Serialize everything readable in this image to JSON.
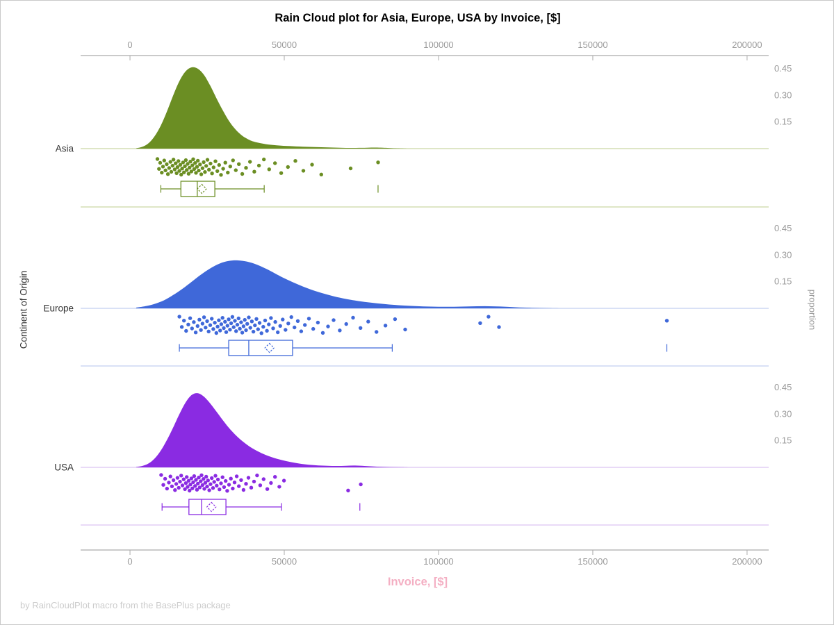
{
  "window": {
    "background": "#FFFFFF",
    "border_color": "#C9C9C9"
  },
  "footer": {
    "text": "by RainCloudPlot macro from the BasePlus package",
    "color": "#CCCCCC"
  },
  "chart_data": {
    "type": "raincloud",
    "title": "Rain Cloud plot for Asia, Europe, USA by Invoice, [$]",
    "xlabel": "Invoice, [$]",
    "xlabel_color": "#F4AFC3",
    "ylabel_left": "Continent of Origin",
    "ylabel_right": "proportion",
    "x_axis": {
      "tick_values": [
        0,
        50000,
        100000,
        150000,
        200000
      ],
      "tick_labels": [
        "0",
        "50000",
        "100000",
        "150000",
        "200000"
      ],
      "range_dollars": [
        -16000,
        207000
      ],
      "color": "#ABABAB",
      "tick_label_color": "#9A9A9A"
    },
    "proportion_ticks": {
      "values": [
        0.45,
        0.3,
        0.15
      ],
      "labels": [
        "0.45",
        "0.30",
        "0.15"
      ],
      "color": "#9A9A9A"
    },
    "groups": [
      {
        "name": "Asia",
        "color": "#6B8E23",
        "light_color": "#C9D6A3",
        "density": {
          "x_thousands": [
            2,
            4,
            6,
            8,
            10,
            12,
            14,
            16,
            18,
            20,
            22,
            24,
            26,
            28,
            30,
            32,
            34,
            36,
            38,
            40,
            43,
            46,
            49,
            52,
            56,
            60,
            64,
            68,
            72,
            76,
            79,
            82,
            86,
            90
          ],
          "proportion": [
            0.002,
            0.01,
            0.03,
            0.07,
            0.13,
            0.21,
            0.3,
            0.38,
            0.435,
            0.458,
            0.45,
            0.415,
            0.355,
            0.285,
            0.218,
            0.158,
            0.112,
            0.078,
            0.055,
            0.04,
            0.028,
            0.021,
            0.017,
            0.014,
            0.011,
            0.009,
            0.007,
            0.005,
            0.004,
            0.0045,
            0.006,
            0.005,
            0.002,
            0
          ]
        },
        "rain_points_thousands": [
          8.9,
          9.4,
          9.8,
          10.3,
          10.7,
          11.1,
          11.5,
          11.9,
          12.3,
          12.7,
          13.1,
          13.4,
          13.8,
          14.1,
          14.5,
          14.8,
          15.1,
          15.4,
          15.7,
          16.0,
          16.3,
          16.6,
          16.9,
          17.2,
          17.5,
          17.8,
          18.1,
          18.4,
          18.7,
          19.0,
          19.3,
          19.6,
          19.9,
          20.2,
          20.5,
          20.8,
          21.1,
          21.4,
          21.7,
          22.0,
          22.3,
          22.7,
          23.1,
          23.5,
          23.9,
          24.3,
          24.7,
          25.1,
          25.6,
          26.1,
          26.6,
          27.1,
          27.7,
          28.3,
          28.9,
          29.5,
          30.2,
          30.9,
          31.7,
          32.5,
          33.4,
          34.3,
          35.3,
          36.4,
          37.6,
          38.9,
          40.3,
          41.8,
          43.4,
          45.1,
          47.0,
          49.0,
          51.2,
          53.6,
          56.2,
          59.0,
          62.0,
          71.5,
          80.4
        ],
        "box": {
          "min": 10.0,
          "q1": 16.5,
          "median": 21.8,
          "mean": 23.3,
          "q3": 27.5,
          "max": 43.5,
          "outliers": [
            80.4
          ]
        }
      },
      {
        "name": "Europe",
        "color": "#3F68D9",
        "light_color": "#C2CFF0",
        "density": {
          "x_thousands": [
            2,
            5,
            8,
            11,
            14,
            17,
            20,
            23,
            26,
            29,
            32,
            35,
            38,
            41,
            44,
            47,
            50,
            54,
            58,
            62,
            66,
            70,
            74,
            78,
            82,
            86,
            90,
            95,
            100,
            105,
            110,
            115,
            120,
            125,
            130,
            136,
            142
          ],
          "proportion": [
            0.004,
            0.012,
            0.025,
            0.045,
            0.075,
            0.11,
            0.15,
            0.19,
            0.225,
            0.252,
            0.267,
            0.27,
            0.263,
            0.247,
            0.224,
            0.197,
            0.17,
            0.138,
            0.11,
            0.087,
            0.068,
            0.053,
            0.041,
            0.032,
            0.025,
            0.019,
            0.015,
            0.011,
            0.009,
            0.009,
            0.011,
            0.012,
            0.01,
            0.006,
            0.003,
            0.001,
            0
          ]
        },
        "rain_points_thousands": [
          16.0,
          16.8,
          17.5,
          18.2,
          18.9,
          19.5,
          20.1,
          20.7,
          21.3,
          21.9,
          22.5,
          23.0,
          23.5,
          24.0,
          24.5,
          25.0,
          25.5,
          26.0,
          26.5,
          27.0,
          27.5,
          28.0,
          28.4,
          28.8,
          29.2,
          29.6,
          30.0,
          30.4,
          30.8,
          31.2,
          31.6,
          32.0,
          32.4,
          32.8,
          33.2,
          33.6,
          34.0,
          34.4,
          34.8,
          35.2,
          35.6,
          36.0,
          36.4,
          36.8,
          37.2,
          37.6,
          38.0,
          38.5,
          39.0,
          39.5,
          40.0,
          40.5,
          41.0,
          41.5,
          42.0,
          42.6,
          43.2,
          43.8,
          44.4,
          45.0,
          45.7,
          46.4,
          47.1,
          47.9,
          48.7,
          49.5,
          50.4,
          51.3,
          52.3,
          53.3,
          54.4,
          55.5,
          56.7,
          58.0,
          59.4,
          60.9,
          62.5,
          64.2,
          66.0,
          68.0,
          70.1,
          72.3,
          74.7,
          77.2,
          79.9,
          82.8,
          85.9,
          89.2,
          113.5,
          116.2,
          119.6,
          174.0
        ],
        "box": {
          "min": 16.0,
          "q1": 32.0,
          "median": 38.5,
          "mean": 45.2,
          "q3": 52.7,
          "max": 85.0,
          "outliers": [
            174.0
          ]
        }
      },
      {
        "name": "USA",
        "color": "#8A2BE2",
        "light_color": "#DCC3F2",
        "density": {
          "x_thousands": [
            2,
            4,
            6,
            8,
            10,
            12,
            14,
            16,
            18,
            20,
            22,
            24,
            26,
            28,
            30,
            32,
            34,
            36,
            38,
            40,
            43,
            46,
            49,
            52,
            55,
            58,
            61,
            64,
            67,
            70,
            73,
            76,
            80,
            84,
            88,
            92
          ],
          "proportion": [
            0.002,
            0.008,
            0.022,
            0.05,
            0.095,
            0.155,
            0.225,
            0.3,
            0.365,
            0.408,
            0.418,
            0.398,
            0.36,
            0.315,
            0.268,
            0.224,
            0.186,
            0.154,
            0.127,
            0.104,
            0.077,
            0.057,
            0.042,
            0.03,
            0.021,
            0.015,
            0.011,
            0.009,
            0.008,
            0.009,
            0.01,
            0.008,
            0.004,
            0.002,
            0.001,
            0
          ]
        },
        "rain_points_thousands": [
          10.1,
          10.8,
          11.4,
          12.0,
          12.6,
          13.1,
          13.6,
          14.1,
          14.6,
          15.0,
          15.4,
          15.8,
          16.2,
          16.6,
          17.0,
          17.4,
          17.8,
          18.1,
          18.4,
          18.7,
          19.0,
          19.3,
          19.6,
          19.9,
          20.2,
          20.5,
          20.8,
          21.1,
          21.4,
          21.7,
          22.0,
          22.3,
          22.6,
          22.9,
          23.2,
          23.5,
          23.8,
          24.1,
          24.4,
          24.7,
          25.0,
          25.3,
          25.7,
          26.1,
          26.5,
          26.9,
          27.3,
          27.7,
          28.1,
          28.5,
          29.0,
          29.5,
          30.0,
          30.5,
          31.0,
          31.5,
          32.1,
          32.7,
          33.3,
          33.9,
          34.6,
          35.3,
          36.0,
          36.8,
          37.6,
          38.4,
          39.3,
          40.2,
          41.2,
          42.2,
          43.3,
          44.5,
          45.7,
          47.0,
          48.4,
          49.9,
          70.7,
          74.8
        ],
        "box": {
          "min": 10.4,
          "q1": 19.1,
          "median": 23.2,
          "mean": 26.4,
          "q3": 31.1,
          "max": 49.1,
          "outliers": [
            74.5
          ]
        }
      }
    ]
  }
}
